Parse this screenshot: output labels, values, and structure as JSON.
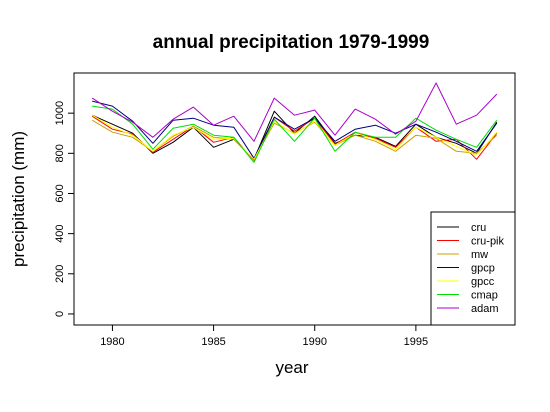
{
  "chart_data": {
    "type": "line",
    "title": "annual precipitation 1979-1999",
    "xlabel": "year",
    "ylabel": "precipitation (mm)",
    "xlim": [
      1978.1,
      1999.9
    ],
    "ylim": [
      -55,
      1200
    ],
    "xticks": [
      1980,
      1985,
      1990,
      1995
    ],
    "yticks": [
      0,
      200,
      400,
      600,
      800,
      1000
    ],
    "xtick_labels": [
      "1980",
      "1985",
      "1990",
      "1995"
    ],
    "ytick_labels": [
      "0",
      "200",
      "400",
      "600",
      "800",
      "1000"
    ],
    "legend_position": "bottom-right",
    "grid": false,
    "x": [
      1979,
      1980,
      1981,
      1982,
      1983,
      1984,
      1985,
      1986,
      1987,
      1988,
      1989,
      1990,
      1991,
      1992,
      1993,
      1994,
      1995,
      1996,
      1997,
      1998,
      1999
    ],
    "series": [
      {
        "name": "cru",
        "color": "#000000",
        "values": [
          990,
          945,
          900,
          800,
          855,
          930,
          830,
          870,
          770,
          1010,
          900,
          985,
          850,
          890,
          880,
          835,
          945,
          880,
          850,
          800,
          955
        ]
      },
      {
        "name": "cru-pik",
        "color": "#ff0000",
        "values": [
          985,
          920,
          895,
          805,
          870,
          935,
          855,
          880,
          765,
          980,
          910,
          975,
          845,
          905,
          875,
          830,
          930,
          860,
          870,
          770,
          900
        ]
      },
      {
        "name": "mw",
        "color": "#cca000",
        "values": [
          965,
          905,
          880,
          810,
          885,
          935,
          880,
          870,
          770,
          950,
          900,
          955,
          840,
          890,
          860,
          810,
          890,
          875,
          810,
          800,
          890
        ]
      },
      {
        "name": "gpcp",
        "color": "#000080",
        "values": [
          1060,
          1035,
          960,
          850,
          965,
          975,
          940,
          930,
          775,
          980,
          920,
          975,
          860,
          920,
          940,
          900,
          945,
          905,
          860,
          810,
          950
        ]
      },
      {
        "name": "gpcc",
        "color": "#ffff00",
        "values": [
          990,
          930,
          890,
          810,
          890,
          930,
          870,
          875,
          770,
          960,
          895,
          960,
          840,
          900,
          870,
          820,
          930,
          880,
          835,
          790,
          905
        ]
      },
      {
        "name": "cmap",
        "color": "#00dd00",
        "values": [
          1035,
          1020,
          945,
          820,
          925,
          945,
          890,
          880,
          755,
          970,
          860,
          975,
          810,
          905,
          880,
          880,
          975,
          915,
          870,
          830,
          965
        ]
      },
      {
        "name": "adam",
        "color": "#aa00cc",
        "values": [
          1075,
          1010,
          955,
          880,
          970,
          1030,
          940,
          985,
          860,
          1075,
          990,
          1015,
          890,
          1020,
          970,
          895,
          960,
          1150,
          945,
          990,
          1095
        ]
      }
    ]
  }
}
